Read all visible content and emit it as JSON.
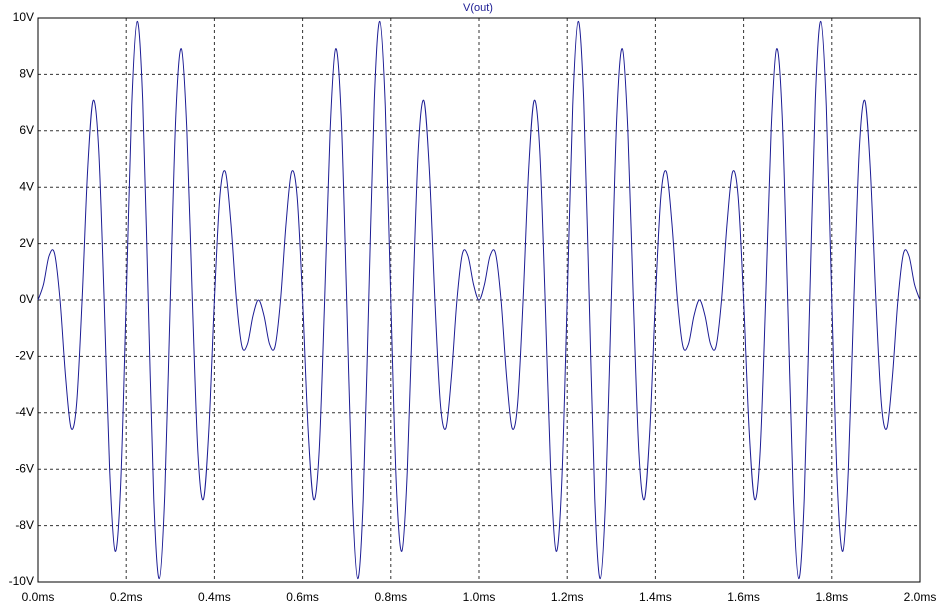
{
  "chart_data": {
    "type": "line",
    "series": [
      {
        "name": "V(out)",
        "color": "#1c1c94",
        "values": [
          0,
          0.56,
          1.56,
          1.65,
          0,
          -2.71,
          -4.54,
          -3.69,
          0,
          4.59,
          7.07,
          5.38,
          0,
          -6.03,
          -8.91,
          -6.53,
          0,
          6.88,
          9.88,
          7.05,
          0,
          -7.05,
          -9.88,
          -6.88,
          0,
          6.53,
          8.91,
          6.03,
          0,
          -5.38,
          -7.07,
          -4.59,
          0,
          3.69,
          4.54,
          2.71,
          0,
          -1.65,
          -1.56,
          -0.56,
          0,
          -0.56,
          -1.56,
          -1.65,
          0,
          2.71,
          4.54,
          3.69,
          0,
          -4.59,
          -7.07,
          -5.38,
          0,
          6.03,
          8.91,
          6.53,
          0,
          -6.88,
          -9.88,
          -7.05,
          0,
          7.05,
          9.88,
          6.88,
          0,
          -6.53,
          -8.91,
          -6.03,
          0,
          5.38,
          7.07,
          4.59,
          0,
          -3.69,
          -4.54,
          -2.71,
          0,
          1.65,
          1.56,
          0.56,
          0,
          0.56,
          1.56,
          1.65,
          0,
          -2.71,
          -4.54,
          -3.69,
          0,
          4.59,
          7.07,
          5.38,
          0,
          -6.03,
          -8.91,
          -6.53,
          0,
          6.88,
          9.88,
          7.05,
          0,
          -7.05,
          -9.88,
          -6.88,
          0,
          6.53,
          8.91,
          6.03,
          0,
          -5.38,
          -7.07,
          -4.59,
          0,
          3.69,
          4.54,
          2.71,
          0,
          -1.65,
          -1.56,
          -0.56,
          0,
          -0.56,
          -1.56,
          -1.65,
          0,
          2.71,
          4.54,
          3.69,
          0,
          -4.59,
          -7.07,
          -5.38,
          0,
          6.03,
          8.91,
          6.53,
          0,
          -6.88,
          -9.88,
          -7.05,
          0,
          7.05,
          9.88,
          6.88,
          0,
          -6.53,
          -8.91,
          -6.03,
          0,
          5.38,
          7.07,
          4.59,
          0,
          -3.69,
          -4.54,
          -2.71,
          0,
          1.65,
          1.56,
          0.56,
          0
        ]
      }
    ],
    "x": [
      0,
      0.0125,
      0.025,
      0.0375,
      0.05,
      0.0625,
      0.075,
      0.0875,
      0.1,
      0.1125,
      0.125,
      0.1375,
      0.15,
      0.1625,
      0.175,
      0.1875,
      0.2,
      0.2125,
      0.225,
      0.2375,
      0.25,
      0.2625,
      0.275,
      0.2875,
      0.3,
      0.3125,
      0.325,
      0.3375,
      0.35,
      0.3625,
      0.375,
      0.3875,
      0.4,
      0.4125,
      0.425,
      0.4375,
      0.45,
      0.4625,
      0.475,
      0.4875,
      0.5,
      0.5125,
      0.525,
      0.5375,
      0.55,
      0.5625,
      0.575,
      0.5875,
      0.6,
      0.6125,
      0.625,
      0.6375,
      0.65,
      0.6625,
      0.675,
      0.6875,
      0.7,
      0.7125,
      0.725,
      0.7375,
      0.75,
      0.7625,
      0.775,
      0.7875,
      0.8,
      0.8125,
      0.825,
      0.8375,
      0.85,
      0.8625,
      0.875,
      0.8875,
      0.9,
      0.9125,
      0.925,
      0.9375,
      0.95,
      0.9625,
      0.975,
      0.9875,
      1,
      1.0125,
      1.025,
      1.0375,
      1.05,
      1.0625,
      1.075,
      1.0875,
      1.1,
      1.1125,
      1.125,
      1.1375,
      1.15,
      1.1625,
      1.175,
      1.1875,
      1.2,
      1.2125,
      1.225,
      1.2375,
      1.25,
      1.2625,
      1.275,
      1.2875,
      1.3,
      1.3125,
      1.325,
      1.3375,
      1.35,
      1.3625,
      1.375,
      1.3875,
      1.4,
      1.4125,
      1.425,
      1.4375,
      1.45,
      1.4625,
      1.475,
      1.4875,
      1.5,
      1.5125,
      1.525,
      1.5375,
      1.55,
      1.5625,
      1.575,
      1.5875,
      1.6,
      1.6125,
      1.625,
      1.6375,
      1.65,
      1.6625,
      1.675,
      1.6875,
      1.7,
      1.7125,
      1.725,
      1.7375,
      1.75,
      1.7625,
      1.775,
      1.7875,
      1.8,
      1.8125,
      1.825,
      1.8375,
      1.85,
      1.8625,
      1.875,
      1.8875,
      1.9,
      1.9125,
      1.925,
      1.9375,
      1.95,
      1.9625,
      1.975,
      1.9875,
      2
    ],
    "xlim": [
      0,
      2
    ],
    "xticks": [
      {
        "value": 0,
        "label": "0.0ms"
      },
      {
        "value": 0.2,
        "label": "0.2ms"
      },
      {
        "value": 0.4,
        "label": "0.4ms"
      },
      {
        "value": 0.6,
        "label": "0.6ms"
      },
      {
        "value": 0.8,
        "label": "0.8ms"
      },
      {
        "value": 1,
        "label": "1.0ms"
      },
      {
        "value": 1.2,
        "label": "1.2ms"
      },
      {
        "value": 1.4,
        "label": "1.4ms"
      },
      {
        "value": 1.6,
        "label": "1.6ms"
      },
      {
        "value": 1.8,
        "label": "1.8ms"
      },
      {
        "value": 2,
        "label": "2.0ms"
      }
    ],
    "ylim": [
      -10,
      10
    ],
    "yticks": [
      {
        "value": -10,
        "label": "-10V"
      },
      {
        "value": -8,
        "label": "-8V"
      },
      {
        "value": -6,
        "label": "-6V"
      },
      {
        "value": -4,
        "label": "-4V"
      },
      {
        "value": -2,
        "label": "-2V"
      },
      {
        "value": 0,
        "label": "0V"
      },
      {
        "value": 2,
        "label": "2V"
      },
      {
        "value": 4,
        "label": "4V"
      },
      {
        "value": 6,
        "label": "6V"
      },
      {
        "value": 8,
        "label": "8V"
      },
      {
        "value": 10,
        "label": "10V"
      }
    ],
    "grid": true
  }
}
